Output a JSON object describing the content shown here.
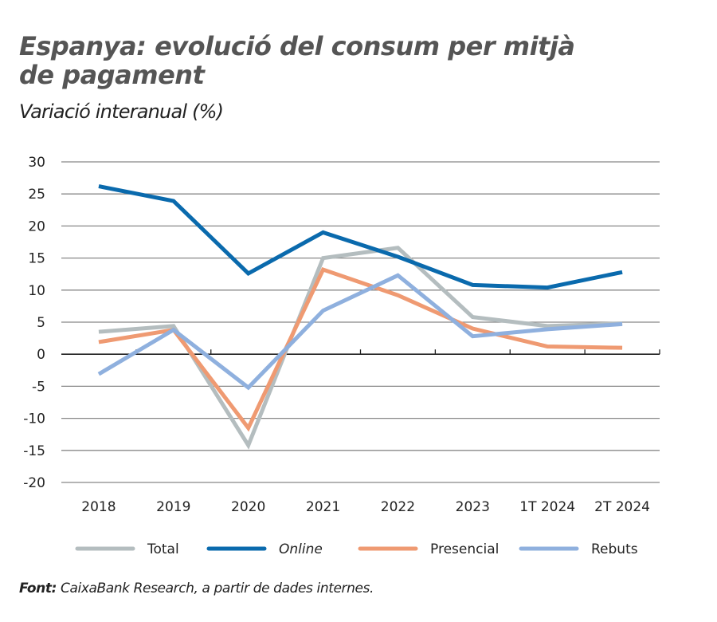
{
  "chart_data": {
    "type": "line",
    "title": "Espanya: evolució del consum per mitjà de pagament",
    "subtitle": "Variació interanual (%)",
    "xlabel": "",
    "ylabel": "",
    "categories": [
      "2018",
      "2019",
      "2020",
      "2021",
      "2022",
      "2023",
      "1T 2024",
      "2T 2024"
    ],
    "ylim": [
      -20,
      30
    ],
    "yticks": [
      "30",
      "25",
      "20",
      "15",
      "10",
      "5",
      "0",
      "-5",
      "-10",
      "-15",
      "-20"
    ],
    "grid": true,
    "legend_position": "bottom",
    "series": [
      {
        "name": "Total",
        "color": "#b4bdbf",
        "italic": false,
        "values": [
          3.5,
          4.4,
          -14.2,
          15.0,
          16.6,
          5.8,
          4.4,
          4.8
        ]
      },
      {
        "name": "Online",
        "color": "#0a6aad",
        "italic": true,
        "values": [
          26.2,
          23.9,
          12.6,
          19.0,
          15.2,
          10.8,
          10.4,
          12.8
        ]
      },
      {
        "name": "Presencial",
        "color": "#ef9a72",
        "italic": false,
        "values": [
          1.9,
          3.8,
          -11.5,
          13.2,
          9.2,
          4.0,
          1.2,
          1.0
        ]
      },
      {
        "name": "Rebuts",
        "color": "#8fb0de",
        "italic": false,
        "values": [
          -3.1,
          3.8,
          -5.2,
          6.8,
          12.3,
          2.8,
          3.9,
          4.7
        ]
      }
    ]
  },
  "source": {
    "label": "Font:",
    "text": " CaixaBank Research, a partir de dades internes."
  }
}
